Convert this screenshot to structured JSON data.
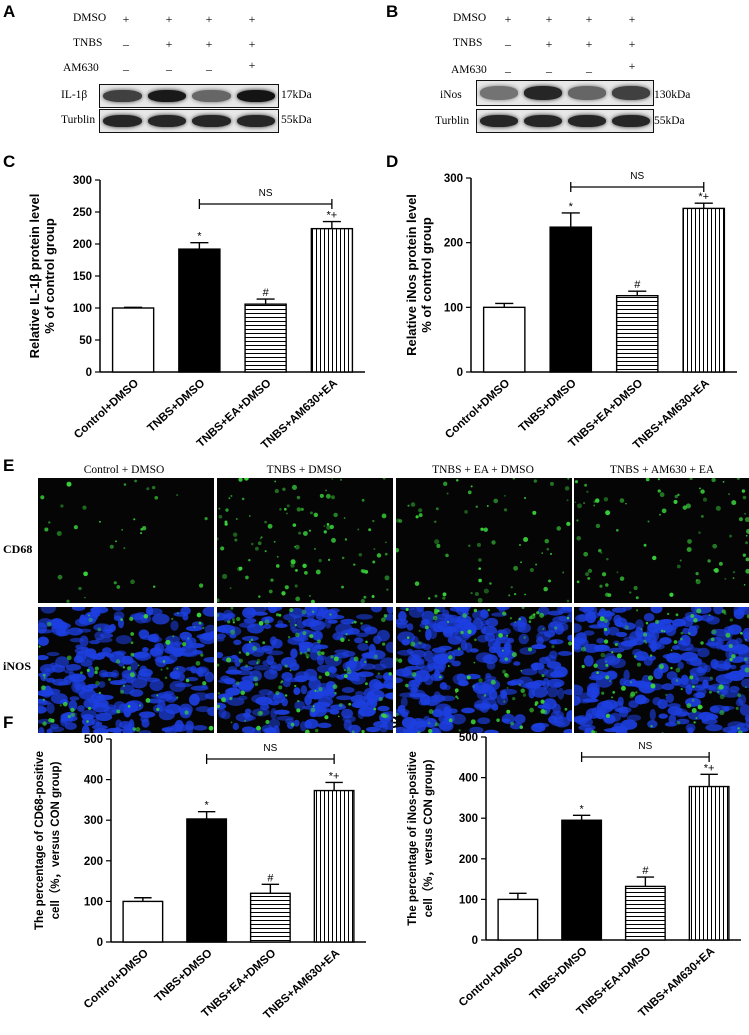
{
  "panels": {
    "a": "A",
    "b": "B",
    "c": "C",
    "d": "D",
    "e": "E",
    "f": "F",
    "g": "G"
  },
  "blot_a": {
    "rows": [
      {
        "label": "DMSO",
        "signs": [
          "+",
          "+",
          "+",
          "+"
        ]
      },
      {
        "label": "TNBS",
        "signs": [
          "–",
          "+",
          "+",
          "+"
        ]
      },
      {
        "label": "AM630",
        "signs": [
          "–",
          "–",
          "–",
          "+"
        ]
      }
    ],
    "bands": [
      {
        "label": "IL-1β",
        "size": "17kDa",
        "intensity": [
          0.75,
          0.9,
          0.6,
          0.92
        ]
      },
      {
        "label": "Turblin",
        "size": "55kDa",
        "intensity": [
          0.85,
          0.85,
          0.85,
          0.85
        ]
      }
    ]
  },
  "blot_b": {
    "rows": [
      {
        "label": "DMSO",
        "signs": [
          "+",
          "+",
          "+",
          "+"
        ]
      },
      {
        "label": "TNBS",
        "signs": [
          "–",
          "+",
          "+",
          "+"
        ]
      },
      {
        "label": "AM630",
        "signs": [
          "–",
          "–",
          "–",
          "+"
        ]
      }
    ],
    "bands": [
      {
        "label": "iNos",
        "size": "130kDa",
        "intensity": [
          0.55,
          0.85,
          0.6,
          0.75
        ]
      },
      {
        "label": "Turblin",
        "size": "55kDa",
        "intensity": [
          0.85,
          0.85,
          0.85,
          0.85
        ]
      }
    ]
  },
  "if_grid": {
    "columns": [
      "Control + DMSO",
      "TNBS + DMSO",
      "TNBS + EA + DMSO",
      "TNBS + AM630 + EA"
    ],
    "rows": [
      "CD68",
      "iNOS"
    ],
    "colors": {
      "cd68": "#39d33a",
      "nucleus": "#1d3fe0",
      "background": "#050505"
    }
  },
  "chart_data": [
    {
      "id": "C",
      "type": "bar",
      "categories": [
        "Control+DMSO",
        "TNBS+DMSO",
        "TNBS+EA+DMSO",
        "TNBS+AM630+EA"
      ],
      "values": [
        100,
        192,
        106,
        224
      ],
      "errors": [
        1,
        10,
        8,
        11
      ],
      "marks": [
        "",
        "*",
        "#",
        "*+"
      ],
      "bar_styles": [
        "white",
        "black",
        "hlines",
        "vlines"
      ],
      "ylabel": "Relative IL-1β protein level",
      "ylabel2": "% of control group",
      "ylim": [
        0,
        300
      ],
      "yticks": [
        0,
        50,
        100,
        150,
        200,
        250,
        300
      ],
      "bracket": {
        "from": 1,
        "to": 3,
        "label": "NS"
      }
    },
    {
      "id": "D",
      "type": "bar",
      "categories": [
        "Control+DMSO",
        "TNBS+DMSO",
        "TNBS+EA+DMSO",
        "TNBS+AM630+EA"
      ],
      "values": [
        100,
        224,
        118,
        253
      ],
      "errors": [
        6,
        22,
        7,
        8
      ],
      "marks": [
        "",
        "*",
        "#",
        "*+"
      ],
      "bar_styles": [
        "white",
        "black",
        "hlines",
        "vlines"
      ],
      "ylabel": "Relative  iNos protein level",
      "ylabel2": "% of control group",
      "ylim": [
        0,
        300
      ],
      "yticks": [
        0,
        100,
        200,
        300
      ],
      "bracket": {
        "from": 1,
        "to": 3,
        "label": "NS"
      }
    },
    {
      "id": "F",
      "type": "bar",
      "categories": [
        "Control+DMSO",
        "TNBS+DMSO",
        "TNBS+EA+DMSO",
        "TNBS+AM630+EA"
      ],
      "values": [
        100,
        303,
        120,
        373
      ],
      "errors": [
        9,
        18,
        22,
        20
      ],
      "marks": [
        "",
        "*",
        "#",
        "*+"
      ],
      "bar_styles": [
        "white",
        "black",
        "hlines",
        "vlines"
      ],
      "ylabel": "The percentage of CD68-positive",
      "ylabel2": "cell（%，versus CON group)",
      "ylim": [
        0,
        500
      ],
      "yticks": [
        0,
        100,
        200,
        300,
        400,
        500
      ],
      "bracket": {
        "from": 1,
        "to": 3,
        "label": "NS"
      }
    },
    {
      "id": "G",
      "type": "bar",
      "categories": [
        "Control+DMSO",
        "TNBS+DMSO",
        "TNBS+EA+DMSO",
        "TNBS+AM630+EA"
      ],
      "values": [
        100,
        295,
        132,
        378
      ],
      "errors": [
        15,
        12,
        23,
        30
      ],
      "marks": [
        "",
        "*",
        "#",
        "*+"
      ],
      "bar_styles": [
        "white",
        "black",
        "hlines",
        "vlines"
      ],
      "ylabel": "The percentage of iNos-positive",
      "ylabel2": "cell（%，versus CON group)",
      "ylim": [
        0,
        500
      ],
      "yticks": [
        0,
        100,
        200,
        300,
        400,
        500
      ],
      "bracket": {
        "from": 1,
        "to": 3,
        "label": "NS"
      }
    }
  ]
}
